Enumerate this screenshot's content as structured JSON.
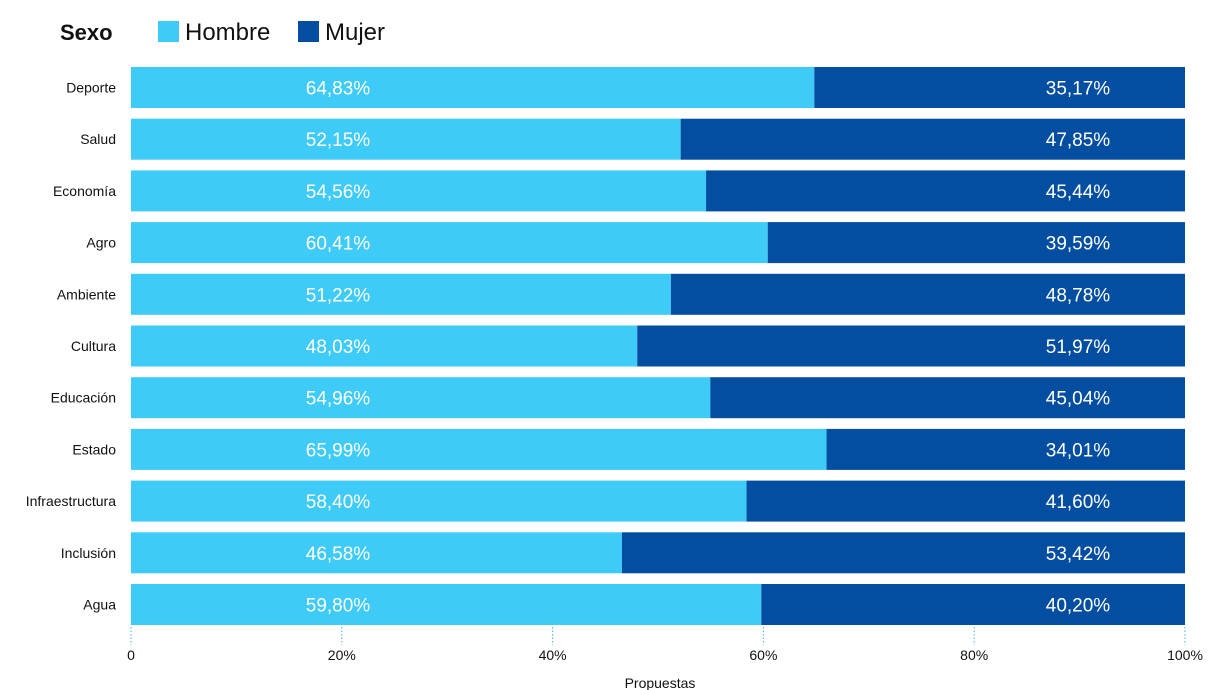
{
  "chart_data": {
    "type": "bar",
    "orientation": "horizontal",
    "stacked": true,
    "legend_title": "Sexo",
    "legend_placement": "top-left",
    "categories": [
      "Deporte",
      "Salud",
      "Economía",
      "Agro",
      "Ambiente",
      "Cultura",
      "Educación",
      "Estado",
      "Infraestructura",
      "Inclusión",
      "Agua"
    ],
    "series": [
      {
        "name": "Hombre",
        "color": "#3fcbf8",
        "values": [
          64.83,
          52.15,
          54.56,
          60.41,
          51.22,
          48.03,
          54.96,
          65.99,
          58.4,
          46.58,
          59.8
        ],
        "labels": [
          "64,83%",
          "52,15%",
          "54,56%",
          "60,41%",
          "51,22%",
          "48,03%",
          "54,96%",
          "65,99%",
          "58,40%",
          "46,58%",
          "59,80%"
        ]
      },
      {
        "name": "Mujer",
        "color": "#044ea1",
        "values": [
          35.17,
          47.85,
          45.44,
          39.59,
          48.78,
          51.97,
          45.04,
          34.01,
          41.6,
          53.42,
          40.2
        ],
        "labels": [
          "35,17%",
          "47,85%",
          "45,44%",
          "39,59%",
          "48,78%",
          "51,97%",
          "45,04%",
          "34,01%",
          "41,60%",
          "53,42%",
          "40,20%"
        ]
      }
    ],
    "xlabel": "Propuestas",
    "ylabel": "",
    "xlim": [
      0,
      100
    ],
    "x_ticks": [
      0,
      20,
      40,
      60,
      80,
      100
    ],
    "x_tick_labels": [
      "0",
      "20%",
      "40%",
      "60%",
      "80%",
      "100%"
    ],
    "grid": "dotted vertical tick marks below bars"
  }
}
